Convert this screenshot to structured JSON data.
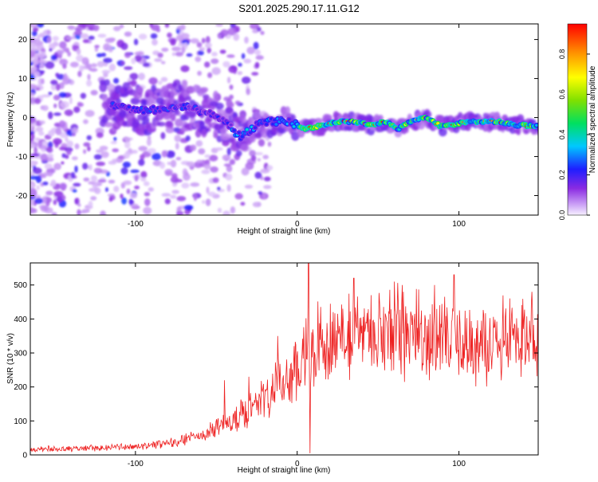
{
  "title": "S201.2025.290.17.11.G12",
  "colors": {
    "snr_line": "#ee2222",
    "spectrogram_base": "#8b3cf0",
    "axis": "#000000"
  },
  "chart_data": [
    {
      "type": "heatmap",
      "xlabel": "Height of straight line (km)",
      "ylabel": "Frequency (Hz)",
      "xlim": [
        -165,
        149
      ],
      "ylim": [
        -25,
        24
      ],
      "xticks": [
        -100,
        0,
        100
      ],
      "xtick_labels": [
        "-100",
        "0",
        "100"
      ],
      "yticks": [
        -20,
        -10,
        0,
        10,
        20
      ],
      "ytick_labels": [
        "-20",
        "-10",
        "0",
        "10",
        "20"
      ],
      "ridge": {
        "x": [
          -115,
          -100,
          -85,
          -70,
          -55,
          -45,
          -35,
          -25,
          -15,
          -5,
          5,
          15,
          25,
          35,
          45,
          55,
          62,
          70,
          80,
          88,
          95,
          105,
          115,
          125,
          135,
          145
        ],
        "y": [
          3,
          2,
          2,
          3,
          1,
          -1,
          -5,
          -2,
          -1,
          -1,
          -3,
          -2,
          -1,
          -1,
          -2,
          -1,
          -3,
          -1,
          0,
          -2,
          -2,
          -1,
          -1,
          -1,
          -2,
          -2
        ]
      },
      "colorbar": {
        "label": "Normalized spectral amplitude",
        "range": [
          0,
          0.95
        ],
        "ticks": [
          0.0,
          0.2,
          0.4,
          0.6,
          0.8
        ],
        "tick_labels": [
          "0.0",
          "0.2",
          "0.4",
          "0.6",
          "0.8"
        ]
      }
    },
    {
      "type": "line",
      "xlabel": "Height of straight line (km)",
      "ylabel": "SNR (10 * v/v)",
      "xlim": [
        -165,
        149
      ],
      "ylim": [
        0,
        565
      ],
      "xticks": [
        -100,
        0,
        100
      ],
      "xtick_labels": [
        "-100",
        "0",
        "100"
      ],
      "yticks": [
        0,
        100,
        200,
        300,
        400,
        500
      ],
      "ytick_labels": [
        "0",
        "100",
        "200",
        "300",
        "400",
        "500"
      ],
      "trend": {
        "x": [
          -165,
          -140,
          -100,
          -80,
          -60,
          -45,
          -35,
          -25,
          -15,
          -5,
          5,
          15,
          25,
          40,
          60,
          80,
          100,
          120,
          149
        ],
        "y": [
          15,
          18,
          25,
          35,
          55,
          90,
          120,
          150,
          190,
          240,
          290,
          330,
          345,
          360,
          370,
          355,
          340,
          335,
          345
        ]
      },
      "spikes": {
        "x": [
          -45,
          -30,
          -12,
          7,
          8,
          35,
          60,
          65,
          85,
          97,
          145
        ],
        "y": [
          220,
          230,
          350,
          565,
          5,
          520,
          510,
          500,
          500,
          530,
          480
        ]
      }
    }
  ]
}
